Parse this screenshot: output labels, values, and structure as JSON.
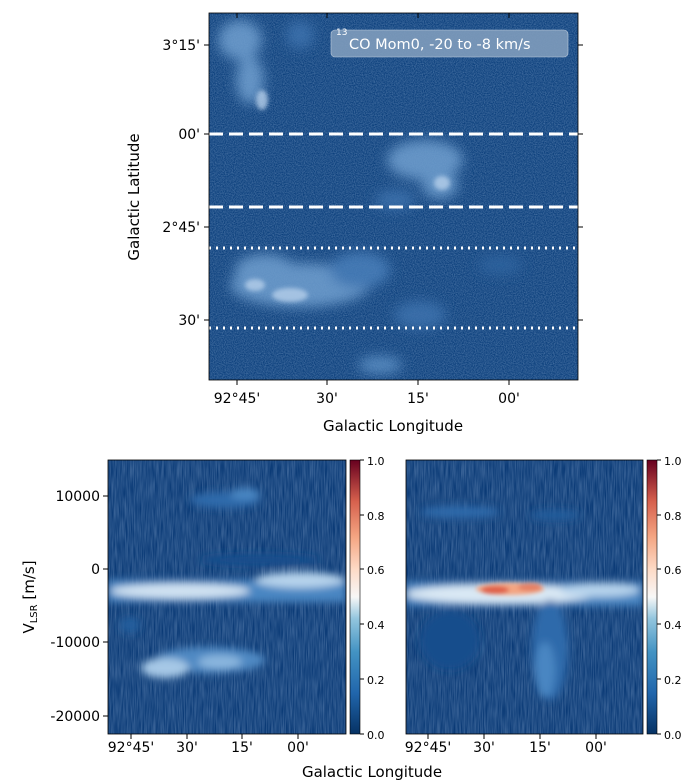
{
  "chart_data": [
    {
      "type": "heatmap",
      "title": "",
      "annotation": {
        "text": "CO Mom0, -20 to -8 km/s",
        "superscript": "13"
      },
      "xlabel": "Galactic Longitude",
      "ylabel": "Galactic Latitude",
      "x_ticks": [
        "92°45'",
        "30'",
        "15'",
        "00'"
      ],
      "y_ticks": [
        "3°15'",
        "00'",
        "2°45'",
        "30'"
      ],
      "colormap": "Blues_r",
      "dashed_lines_latitude": [
        "3°00'",
        "2°50'"
      ],
      "dotted_lines_latitude": [
        "2°43'",
        "2°32'"
      ],
      "line_color": "#ffffff",
      "background_color": "#0b3f7c",
      "bright_regions": [
        "upper-left filament",
        "center-right cloud",
        "lower-left band"
      ]
    },
    {
      "type": "heatmap",
      "xlabel": "Galactic Longitude",
      "ylabel": "V_LSR [m/s]",
      "x_ticks": [
        "92°45'",
        "30'",
        "15'",
        "00'"
      ],
      "y_ticks": [
        "10000",
        "0",
        "-10000",
        "-20000"
      ],
      "ylim": [
        -22000,
        15000
      ],
      "colorbar": {
        "ticks": [
          "1.0",
          "0.8",
          "0.6",
          "0.4",
          "0.2",
          "0.0"
        ],
        "range": [
          0,
          1
        ],
        "colormap": "RdBu_r"
      }
    },
    {
      "type": "heatmap",
      "xlabel": "Galactic Longitude",
      "ylabel": "",
      "x_ticks": [
        "92°45'",
        "30'",
        "15'",
        "00'"
      ],
      "ylim": [
        -22000,
        15000
      ],
      "colorbar": {
        "ticks": [
          "1.0",
          "0.8",
          "0.6",
          "0.4",
          "0.2",
          "0.0"
        ],
        "range": [
          0,
          1
        ],
        "colormap": "RdBu_r"
      },
      "peak_color": "#e0614a"
    }
  ],
  "shared_xlabel": "Galactic Longitude"
}
